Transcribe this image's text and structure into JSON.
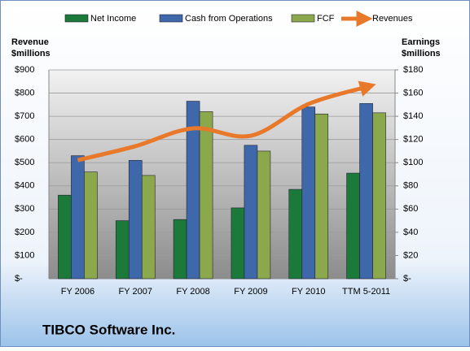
{
  "chart_data": {
    "type": "bar-line",
    "title": "TIBCO Software Inc.",
    "ylabel": [
      "Revenue",
      "$millions"
    ],
    "y2label": [
      "Earnings",
      "$millions"
    ],
    "categories": [
      "FY 2006",
      "FY 2007",
      "FY 2008",
      "FY 2009",
      "FY 2010",
      "TTM 5-2011"
    ],
    "series": [
      {
        "name": "Net Income",
        "color": "#1b7a3a",
        "type": "bar",
        "axis": "y2",
        "values": [
          72,
          50,
          51,
          61,
          77,
          91
        ]
      },
      {
        "name": "Cash from Operations",
        "color": "#3f68aa",
        "type": "bar",
        "axis": "y2",
        "values": [
          106,
          102,
          153,
          115,
          148,
          151
        ]
      },
      {
        "name": "FCF",
        "color": "#8ba84c",
        "type": "bar",
        "axis": "y2",
        "values": [
          92,
          89,
          144,
          110,
          142,
          143
        ]
      },
      {
        "name": "Revenues",
        "color": "#e8792a",
        "type": "line",
        "axis": "y",
        "values": [
          511,
          571,
          648,
          616,
          753,
          826
        ]
      }
    ],
    "ylim": [
      0,
      900
    ],
    "yticks": [
      {
        "value": 0,
        "label": "$-"
      },
      {
        "value": 100,
        "label": "$100"
      },
      {
        "value": 200,
        "label": "$200"
      },
      {
        "value": 300,
        "label": "$300"
      },
      {
        "value": 400,
        "label": "$400"
      },
      {
        "value": 500,
        "label": "$500"
      },
      {
        "value": 600,
        "label": "$600"
      },
      {
        "value": 700,
        "label": "$700"
      },
      {
        "value": 800,
        "label": "$800"
      },
      {
        "value": 900,
        "label": "$900"
      }
    ],
    "y2lim": [
      0,
      180
    ],
    "y2ticks": [
      {
        "value": 0,
        "label": "$-"
      },
      {
        "value": 20,
        "label": "$20"
      },
      {
        "value": 40,
        "label": "$40"
      },
      {
        "value": 60,
        "label": "$60"
      },
      {
        "value": 80,
        "label": "$80"
      },
      {
        "value": 100,
        "label": "$100"
      },
      {
        "value": 120,
        "label": "$120"
      },
      {
        "value": 140,
        "label": "$140"
      },
      {
        "value": 160,
        "label": "$160"
      },
      {
        "value": 180,
        "label": "$180"
      }
    ],
    "grid": true,
    "legend": "top"
  }
}
